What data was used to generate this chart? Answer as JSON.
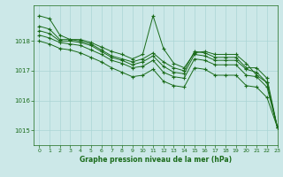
{
  "background_color": "#cce8e8",
  "grid_color": "#aad4d4",
  "line_color": "#1a6b1a",
  "marker_color": "#1a6b1a",
  "xlabel": "Graphe pression niveau de la mer (hPa)",
  "xlabel_color": "#1a6b1a",
  "ylabel_color": "#1a6b1a",
  "xlim": [
    -0.5,
    23
  ],
  "ylim": [
    1014.5,
    1019.2
  ],
  "yticks": [
    1015,
    1016,
    1017,
    1018
  ],
  "xticks": [
    0,
    1,
    2,
    3,
    4,
    5,
    6,
    7,
    8,
    9,
    10,
    11,
    12,
    13,
    14,
    15,
    16,
    17,
    18,
    19,
    20,
    21,
    22,
    23
  ],
  "series": [
    [
      1018.85,
      1018.75,
      1018.2,
      1018.05,
      1018.05,
      1017.95,
      1017.8,
      1017.65,
      1017.55,
      1017.4,
      1017.55,
      1018.85,
      1017.75,
      1017.25,
      1017.1,
      1017.6,
      1017.65,
      1017.55,
      1017.55,
      1017.55,
      1017.25,
      1016.85,
      1016.6,
      1015.1
    ],
    [
      1018.5,
      1018.4,
      1018.05,
      1018.05,
      1018.0,
      1017.9,
      1017.7,
      1017.5,
      1017.4,
      1017.3,
      1017.4,
      1017.6,
      1017.3,
      1017.1,
      1017.0,
      1017.65,
      1017.6,
      1017.45,
      1017.45,
      1017.45,
      1017.1,
      1017.1,
      1016.75,
      1015.1
    ],
    [
      1018.35,
      1018.25,
      1018.0,
      1018.0,
      1017.95,
      1017.85,
      1017.65,
      1017.45,
      1017.35,
      1017.2,
      1017.3,
      1017.5,
      1017.15,
      1016.95,
      1016.9,
      1017.55,
      1017.5,
      1017.35,
      1017.35,
      1017.35,
      1017.05,
      1016.95,
      1016.6,
      1015.1
    ],
    [
      1018.2,
      1018.1,
      1017.95,
      1017.9,
      1017.85,
      1017.7,
      1017.55,
      1017.35,
      1017.25,
      1017.1,
      1017.15,
      1017.35,
      1016.95,
      1016.8,
      1016.75,
      1017.4,
      1017.35,
      1017.2,
      1017.2,
      1017.2,
      1016.85,
      1016.8,
      1016.45,
      1015.1
    ],
    [
      1018.0,
      1017.9,
      1017.75,
      1017.7,
      1017.6,
      1017.45,
      1017.3,
      1017.1,
      1016.95,
      1016.8,
      1016.85,
      1017.05,
      1016.65,
      1016.5,
      1016.45,
      1017.1,
      1017.05,
      1016.85,
      1016.85,
      1016.85,
      1016.5,
      1016.45,
      1016.1,
      1015.1
    ]
  ]
}
